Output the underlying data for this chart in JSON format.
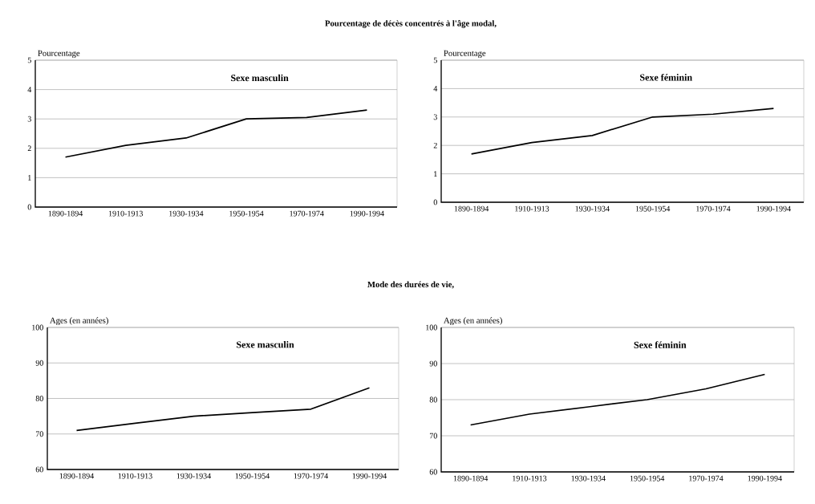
{
  "chart_data": [
    {
      "type": "line",
      "title": "Pourcentage de décès concentrés à l'âge modal,",
      "ylabel": "Pourcentage",
      "categories": [
        "1890-1894",
        "1910-1913",
        "1930-1934",
        "1950-1954",
        "1970-1974",
        "1990-1994"
      ],
      "values": [
        1.7,
        2.1,
        2.35,
        3.0,
        3.05,
        3.3
      ],
      "color": "#000000",
      "ylim": [
        0,
        5
      ],
      "yticks": [
        0,
        1,
        2,
        3,
        4,
        5
      ],
      "grid": "y",
      "annotations": [
        "Sexe masculin"
      ]
    },
    {
      "type": "line",
      "ylabel": "Pourcentage",
      "categories": [
        "1890-1894",
        "1910-1913",
        "1930-1934",
        "1950-1954",
        "1970-1974",
        "1990-1994"
      ],
      "values": [
        1.7,
        2.1,
        2.35,
        3.0,
        3.1,
        3.3
      ],
      "color": "#000000",
      "ylim": [
        0,
        5
      ],
      "yticks": [
        0,
        1,
        2,
        3,
        4,
        5
      ],
      "grid": "y",
      "annotations": [
        "Sexe féminin"
      ]
    },
    {
      "type": "line",
      "title": "Mode des durées de vie,",
      "ylabel": "Ages (en années)",
      "categories": [
        "1890-1894",
        "1910-1913",
        "1930-1934",
        "1950-1954",
        "1970-1974",
        "1990-1994"
      ],
      "values": [
        71,
        73,
        75,
        76,
        77,
        83
      ],
      "color": "#000000",
      "ylim": [
        60,
        100
      ],
      "yticks": [
        60,
        70,
        80,
        90,
        100
      ],
      "grid": "y",
      "annotations": [
        "Sexe masculin"
      ]
    },
    {
      "type": "line",
      "ylabel": "Ages (en années)",
      "categories": [
        "1890-1894",
        "1910-1913",
        "1930-1934",
        "1950-1954",
        "1970-1974",
        "1990-1994"
      ],
      "values": [
        73,
        76,
        78,
        80,
        83,
        87
      ],
      "color": "#000000",
      "ylim": [
        60,
        100
      ],
      "yticks": [
        60,
        70,
        80,
        90,
        100
      ],
      "grid": "y",
      "annotations": [
        "Sexe féminin"
      ]
    }
  ]
}
